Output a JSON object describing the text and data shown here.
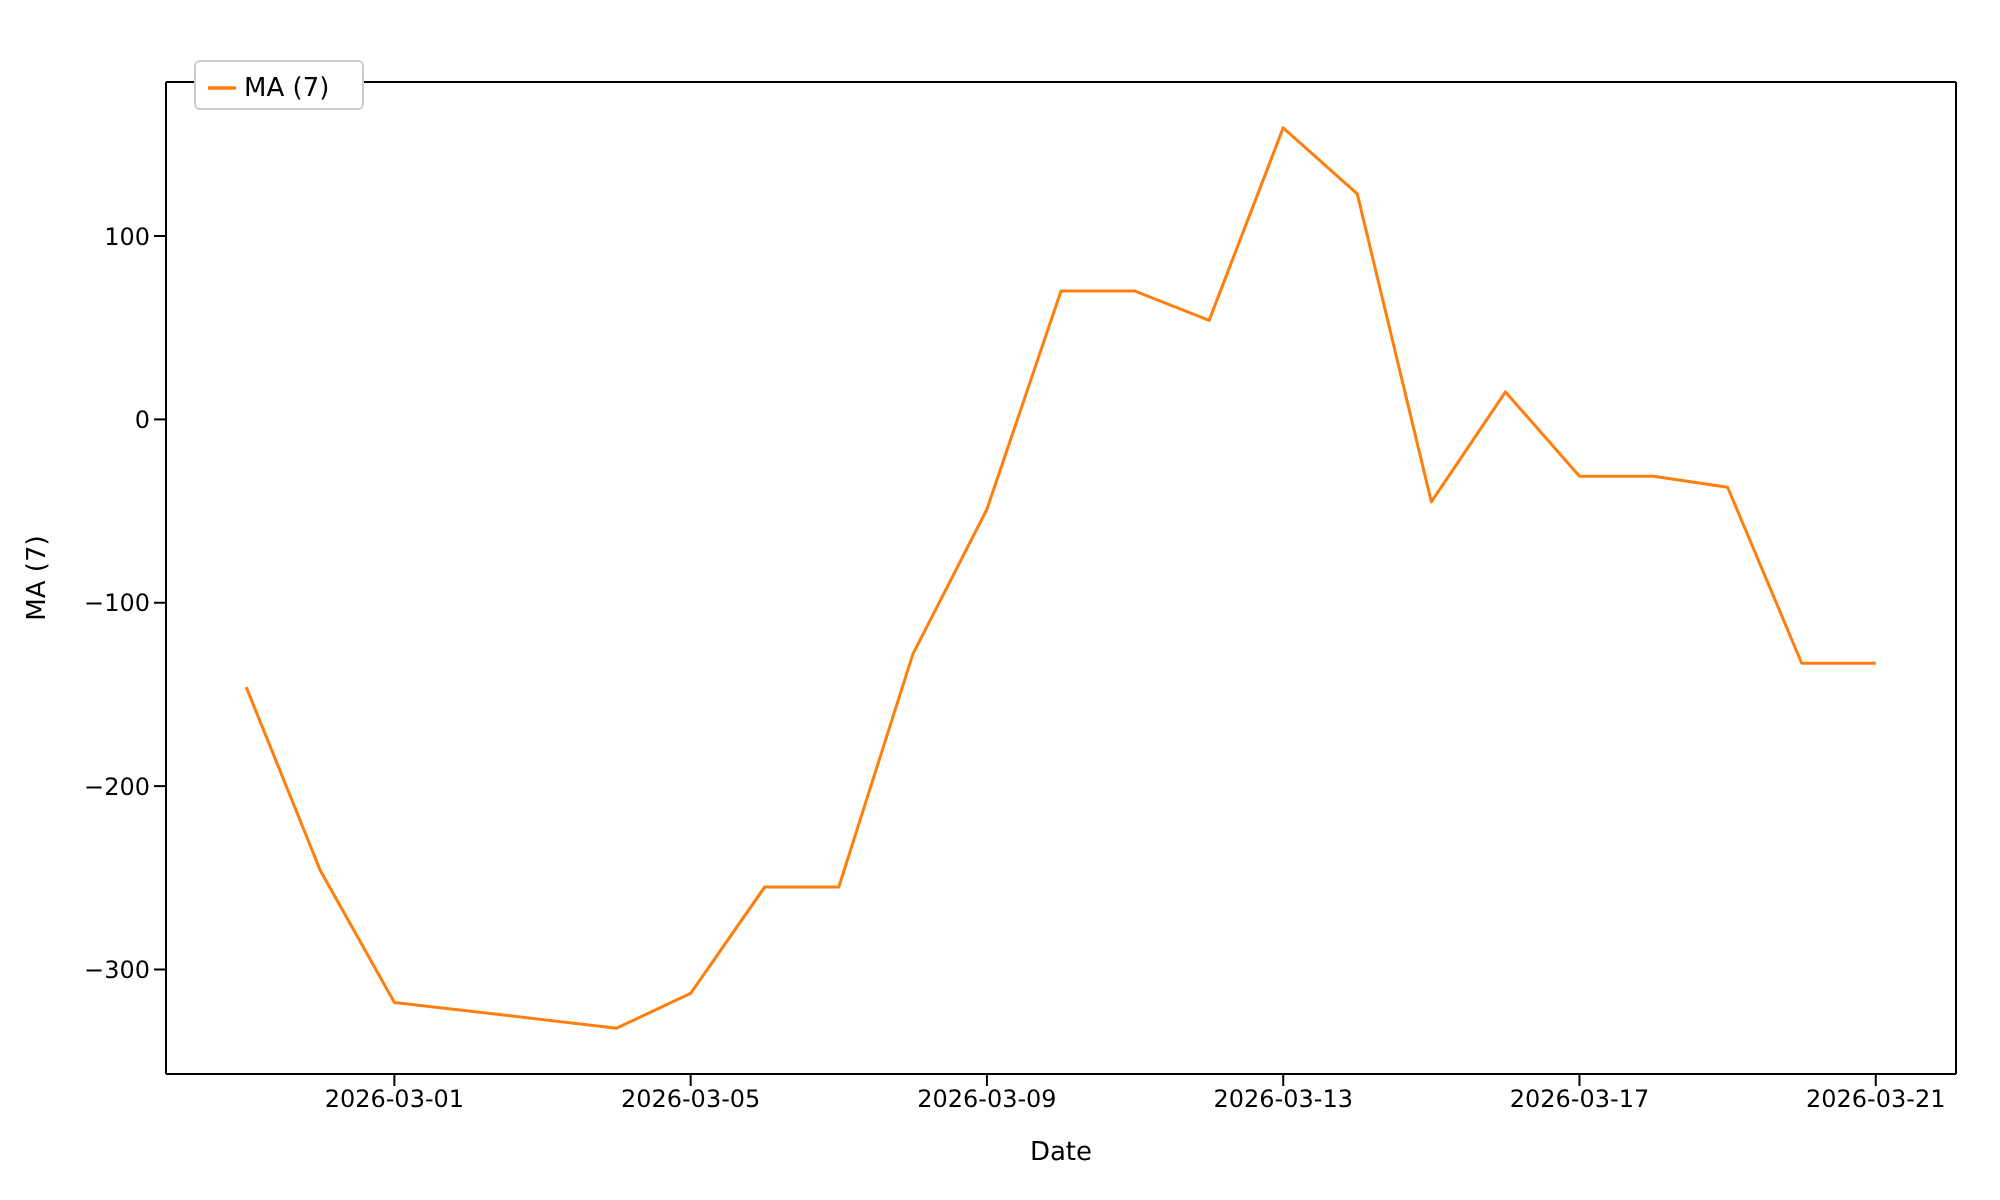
{
  "chart_data": {
    "type": "line",
    "xlabel": "Date",
    "ylabel": "MA (7)",
    "legend": "top left",
    "grid": false,
    "marker": "none",
    "line_style": "solid",
    "x": [
      "2026-02-27",
      "2026-02-28",
      "2026-03-01",
      "2026-03-04",
      "2026-03-05",
      "2026-03-06",
      "2026-03-07",
      "2026-03-08",
      "2026-03-09",
      "2026-03-10",
      "2026-03-11",
      "2026-03-12",
      "2026-03-13",
      "2026-03-14",
      "2026-03-15",
      "2026-03-16",
      "2026-03-17",
      "2026-03-18",
      "2026-03-19",
      "2026-03-20",
      "2026-03-21"
    ],
    "series": [
      {
        "name": "MA (7)",
        "color": "#ff7f0e",
        "values": [
          -146,
          -246,
          -318,
          -332,
          -313,
          -255,
          -255,
          -128,
          -49,
          70,
          70,
          54,
          159,
          123,
          -45,
          15,
          -31,
          -31,
          -37,
          -133,
          -133
        ]
      }
    ],
    "xlim": [
      "2026-02-25T22:00",
      "2026-03-22T02:00"
    ],
    "xticks": [
      "2026-03-01",
      "2026-03-05",
      "2026-03-09",
      "2026-03-13",
      "2026-03-17",
      "2026-03-21"
    ],
    "ylim": [
      -357,
      184
    ],
    "yticks": [
      {
        "value": -300,
        "label": "−300"
      },
      {
        "value": -200,
        "label": "−200"
      },
      {
        "value": -100,
        "label": "−100"
      },
      0,
      100
    ]
  }
}
